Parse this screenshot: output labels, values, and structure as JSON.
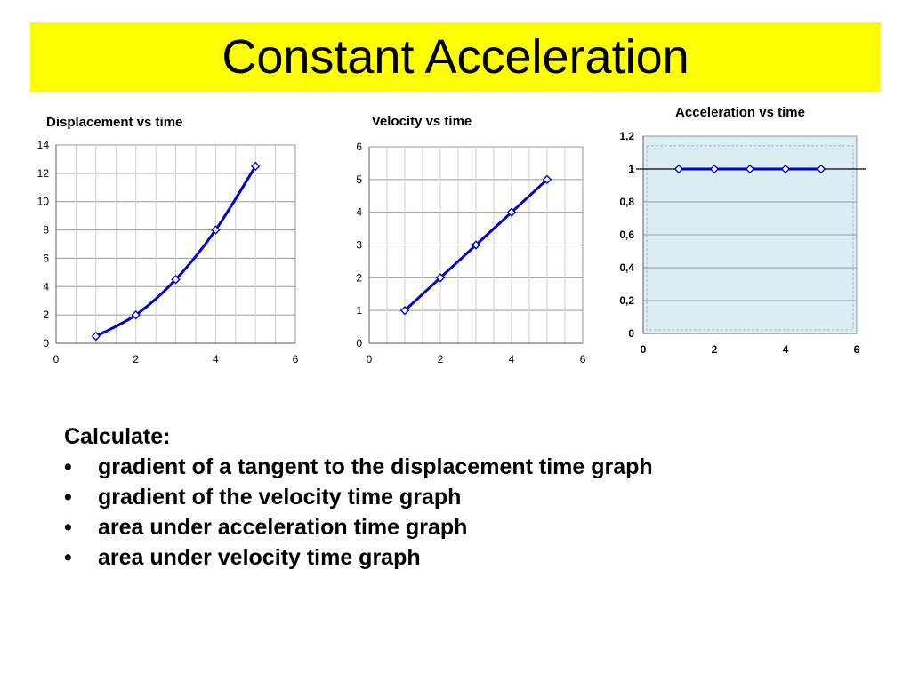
{
  "slide": {
    "title": "Constant Acceleration",
    "accent_color": "#ffff00"
  },
  "chart_data": [
    {
      "type": "line",
      "title": "Displacement vs time",
      "x": [
        1,
        2,
        3,
        4,
        5
      ],
      "series": [
        {
          "values": [
            0.5,
            2,
            4.5,
            8,
            12.5
          ]
        }
      ],
      "xlim": [
        0,
        6
      ],
      "ylim": [
        0,
        14
      ],
      "x_ticks": [
        "0",
        "2",
        "4",
        "6"
      ],
      "y_ticks": [
        "0",
        "2",
        "4",
        "6",
        "8",
        "10",
        "12",
        "14"
      ],
      "smooth": true,
      "grid": true,
      "plot_background": "#ffffff",
      "line_color": "#0000cc",
      "marker": "diamond"
    },
    {
      "type": "line",
      "title": "Velocity vs time",
      "x": [
        1,
        2,
        3,
        4,
        5
      ],
      "series": [
        {
          "values": [
            1,
            2,
            3,
            4,
            5
          ]
        }
      ],
      "xlim": [
        0,
        6
      ],
      "ylim": [
        0,
        6
      ],
      "x_ticks": [
        "0",
        "2",
        "4",
        "6"
      ],
      "y_ticks": [
        "0",
        "1",
        "2",
        "3",
        "4",
        "5",
        "6"
      ],
      "smooth": false,
      "grid": true,
      "plot_background": "#ffffff",
      "line_color": "#0000cc",
      "marker": "diamond"
    },
    {
      "type": "line",
      "title": "Acceleration vs time",
      "x": [
        1,
        2,
        3,
        4,
        5
      ],
      "series": [
        {
          "values": [
            1,
            1,
            1,
            1,
            1
          ]
        }
      ],
      "xlim": [
        0,
        6
      ],
      "ylim": [
        0,
        1.2
      ],
      "x_ticks": [
        "0",
        "2",
        "4",
        "6"
      ],
      "y_ticks": [
        "0",
        "0,2",
        "0,4",
        "0,6",
        "0,8",
        "1",
        "1,2"
      ],
      "smooth": false,
      "grid": true,
      "plot_background": "#dbeef4",
      "line_color": "#0000cc",
      "marker": "diamond"
    }
  ],
  "tasks": {
    "heading": "Calculate:",
    "bullet": "•",
    "items": [
      "gradient of a tangent to the displacement time graph",
      "gradient of the velocity time graph",
      "area under acceleration time graph",
      "area under velocity time graph"
    ]
  }
}
